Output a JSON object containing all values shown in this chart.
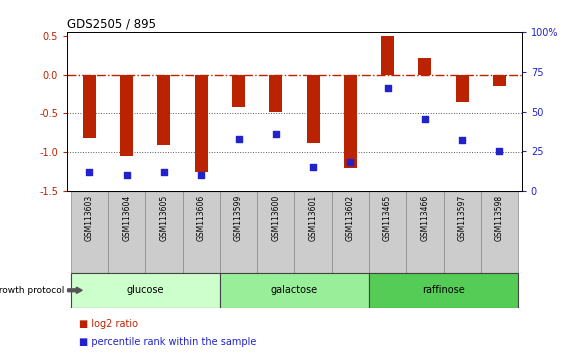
{
  "title": "GDS2505 / 895",
  "samples": [
    "GSM113603",
    "GSM113604",
    "GSM113605",
    "GSM113606",
    "GSM113599",
    "GSM113600",
    "GSM113601",
    "GSM113602",
    "GSM113465",
    "GSM113466",
    "GSM113597",
    "GSM113598"
  ],
  "log2_ratio": [
    -0.82,
    -1.05,
    -0.9,
    -1.25,
    -0.42,
    -0.48,
    -0.88,
    -1.2,
    0.5,
    0.22,
    -0.35,
    -0.15
  ],
  "percentile_rank": [
    12,
    10,
    12,
    10,
    33,
    36,
    15,
    18,
    65,
    45,
    32,
    25
  ],
  "groups": [
    {
      "name": "glucose",
      "start": 0,
      "end": 4,
      "color": "#ccffcc"
    },
    {
      "name": "galactose",
      "start": 4,
      "end": 8,
      "color": "#99ee99"
    },
    {
      "name": "raffinose",
      "start": 8,
      "end": 12,
      "color": "#55cc55"
    }
  ],
  "bar_color": "#bb2200",
  "dot_color": "#2222cc",
  "hline_color": "#bb2200",
  "dotted_line_color": "#555555",
  "ylim_left": [
    -1.5,
    0.55
  ],
  "ylim_right": [
    0,
    100
  ],
  "yticks_left": [
    -1.5,
    -1.0,
    -0.5,
    0.0,
    0.5
  ],
  "yticks_right": [
    0,
    25,
    50,
    75,
    100
  ],
  "background_color": "#ffffff",
  "label_bg": "#cccccc",
  "label_border": "#888888"
}
